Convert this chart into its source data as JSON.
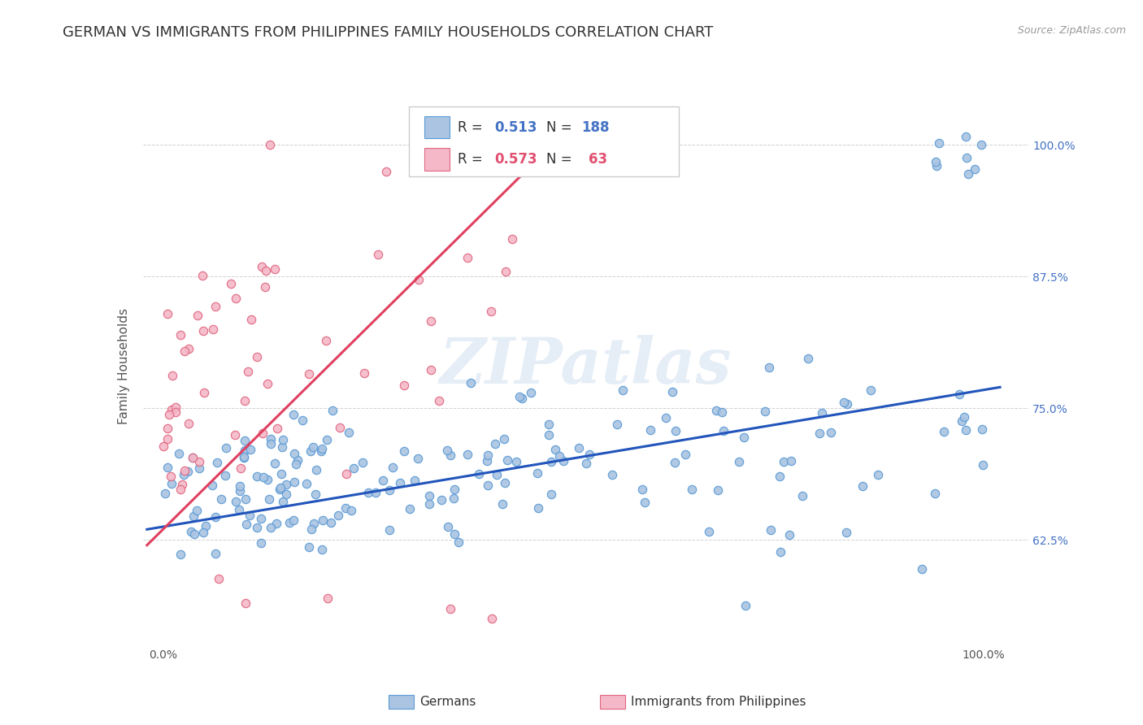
{
  "title": "GERMAN VS IMMIGRANTS FROM PHILIPPINES FAMILY HOUSEHOLDS CORRELATION CHART",
  "source": "Source: ZipAtlas.com",
  "ylabel": "Family Households",
  "german_color": "#aac4e2",
  "german_edge_color": "#5b9bd5",
  "phil_color": "#f4b8c8",
  "phil_edge_color": "#e06880",
  "german_line_color": "#2255bb",
  "phil_line_color": "#e04060",
  "legend_r_german": "0.513",
  "legend_n_german": "188",
  "legend_r_phil": "0.573",
  "legend_n_phil": " 63",
  "watermark": "ZIPatlas",
  "background_color": "#ffffff",
  "grid_color": "#cccccc",
  "title_fontsize": 13,
  "axis_label_fontsize": 11,
  "tick_fontsize": 10,
  "right_tick_color": "#4472c4"
}
